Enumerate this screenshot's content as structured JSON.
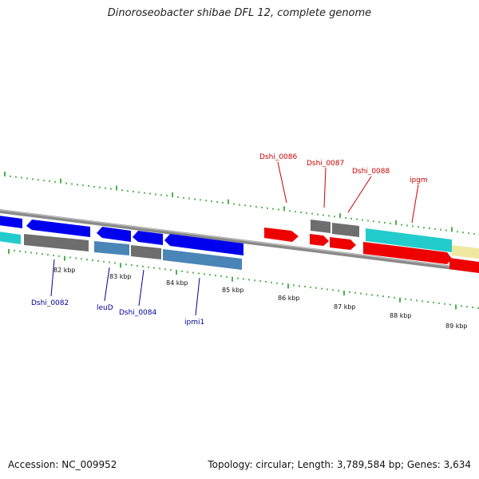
{
  "title": "Dinoroseobacter shibae DFL 12, complete genome",
  "footer": {
    "accession": "Accession: NC_009952",
    "stats": "Topology: circular; Length: 3,789,584 bp; Genes: 3,634"
  },
  "colors": {
    "gene_blue": "#0000ee",
    "gene_red": "#ee0000",
    "gene_grey": "#707070",
    "cds_steelblue": "#4a85b8",
    "cds_cyan": "#22cccc",
    "pale_yellow": "#eee8a0",
    "label_blue": "#000099",
    "label_red": "#cc0000",
    "tick_green": "#119911"
  },
  "axis": {
    "kbp_labels": [
      "82 kbp",
      "83 kbp",
      "84 kbp",
      "85 kbp",
      "86 kbp",
      "87 kbp",
      "88 kbp",
      "89 kbp"
    ]
  },
  "genes": {
    "lower_labels": [
      "Dshi_0082",
      "leuD",
      "Dshi_0084",
      "ipmi1"
    ],
    "upper_labels": [
      "Dshi_0086",
      "Dshi_0087",
      "Dshi_0088",
      "ipgm"
    ]
  }
}
